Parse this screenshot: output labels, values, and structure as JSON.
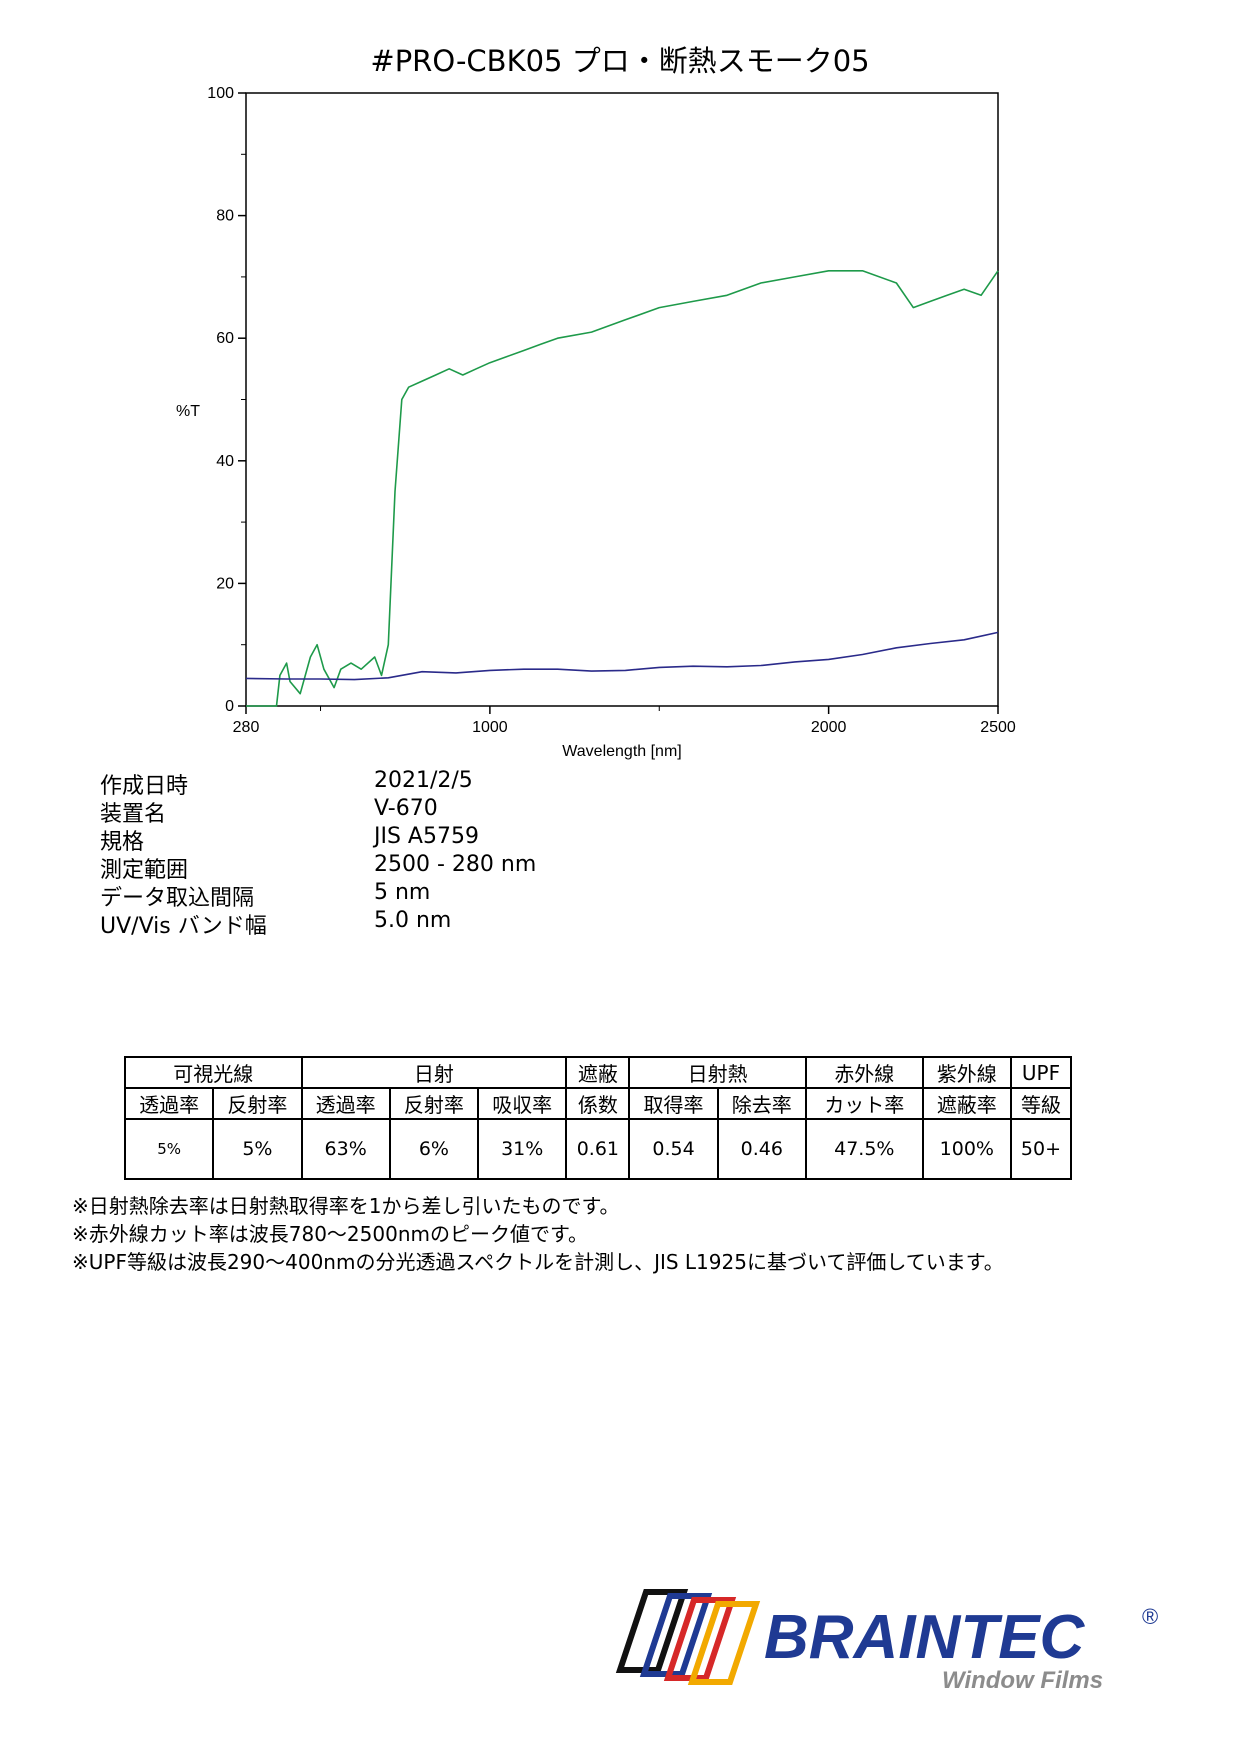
{
  "title": "#PRO-CBK05  プロ・断熱スモーク05",
  "chart_data": {
    "type": "line",
    "xlabel": "Wavelength [nm]",
    "ylabel": "%T",
    "xlim": [
      280,
      2500
    ],
    "ylim": [
      0,
      100
    ],
    "x_ticks": [
      280,
      1000,
      2000,
      2500
    ],
    "y_ticks": [
      0,
      20,
      40,
      60,
      80,
      100
    ],
    "series": [
      {
        "color": "#1e9a4a",
        "points": [
          [
            280,
            0
          ],
          [
            370,
            0
          ],
          [
            380,
            5
          ],
          [
            400,
            7
          ],
          [
            410,
            4
          ],
          [
            440,
            2
          ],
          [
            470,
            8
          ],
          [
            490,
            10
          ],
          [
            510,
            6
          ],
          [
            540,
            3
          ],
          [
            560,
            6
          ],
          [
            590,
            7
          ],
          [
            620,
            6
          ],
          [
            660,
            8
          ],
          [
            680,
            5
          ],
          [
            700,
            10
          ],
          [
            720,
            35
          ],
          [
            740,
            50
          ],
          [
            760,
            52
          ],
          [
            800,
            53
          ],
          [
            840,
            54
          ],
          [
            880,
            55
          ],
          [
            920,
            54
          ],
          [
            960,
            55
          ],
          [
            1000,
            56
          ],
          [
            1050,
            57
          ],
          [
            1100,
            58
          ],
          [
            1150,
            59
          ],
          [
            1200,
            60
          ],
          [
            1300,
            61
          ],
          [
            1400,
            63
          ],
          [
            1500,
            65
          ],
          [
            1600,
            66
          ],
          [
            1700,
            67
          ],
          [
            1800,
            69
          ],
          [
            1900,
            70
          ],
          [
            2000,
            71
          ],
          [
            2100,
            71
          ],
          [
            2200,
            69
          ],
          [
            2250,
            65
          ],
          [
            2300,
            66
          ],
          [
            2350,
            67
          ],
          [
            2400,
            68
          ],
          [
            2450,
            67
          ],
          [
            2500,
            71
          ]
        ]
      },
      {
        "color": "#2a2a8a",
        "points": [
          [
            280,
            4.5
          ],
          [
            400,
            4.4
          ],
          [
            500,
            4.4
          ],
          [
            600,
            4.3
          ],
          [
            700,
            4.6
          ],
          [
            800,
            5.6
          ],
          [
            900,
            5.4
          ],
          [
            1000,
            5.8
          ],
          [
            1100,
            6.0
          ],
          [
            1200,
            6.0
          ],
          [
            1300,
            5.7
          ],
          [
            1400,
            5.8
          ],
          [
            1500,
            6.3
          ],
          [
            1600,
            6.5
          ],
          [
            1700,
            6.4
          ],
          [
            1800,
            6.6
          ],
          [
            1900,
            7.2
          ],
          [
            2000,
            7.6
          ],
          [
            2100,
            8.4
          ],
          [
            2200,
            9.5
          ],
          [
            2300,
            10.2
          ],
          [
            2400,
            10.8
          ],
          [
            2500,
            12.0
          ]
        ]
      }
    ]
  },
  "info": [
    {
      "label": "作成日時",
      "value": "2021/2/5"
    },
    {
      "label": "装置名",
      "value": "V-670"
    },
    {
      "label": "規格",
      "value": "JIS A5759"
    },
    {
      "label": "測定範囲",
      "value": "2500 - 280 nm"
    },
    {
      "label": "データ取込間隔",
      "value": "5 nm"
    },
    {
      "label": "UV/Vis バンド幅",
      "value": "5.0 nm"
    }
  ],
  "table": {
    "groups": [
      "可視光線",
      "日射",
      "遮蔽",
      "日射熱",
      "赤外線",
      "紫外線",
      "UPF"
    ],
    "subheaders": [
      "透過率",
      "反射率",
      "透過率",
      "反射率",
      "吸収率",
      "係数",
      "取得率",
      "除去率",
      "カット率",
      "遮蔽率",
      "等級"
    ],
    "values": [
      "5%",
      "5%",
      "63%",
      "6%",
      "31%",
      "0.61",
      "0.54",
      "0.46",
      "47.5%",
      "100%",
      "50+"
    ]
  },
  "notes": [
    "※日射熱除去率は日射熱取得率を1から差し引いたものです。",
    "※赤外線カット率は波長780～2500nmのピーク値です。",
    "※UPF等級は波長290～400nmの分光透過スペクトルを計測し、JIS L1925に基づいて評価しています。"
  ],
  "logo": {
    "brand": "BRAINTEC",
    "registered": "®",
    "tagline": "Window Films",
    "brand_color": "#1f3a93",
    "tagline_color": "#8c8c8c"
  }
}
